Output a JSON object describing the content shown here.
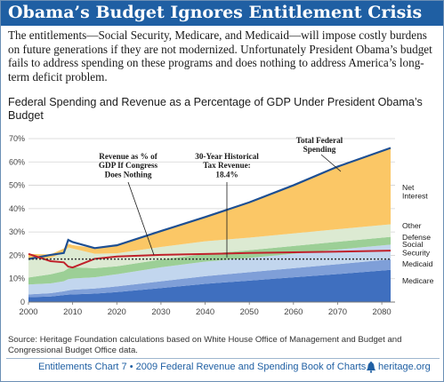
{
  "header": {
    "title": "Obama’s Budget Ignores Entitlement Crisis",
    "intro": "The entitlements—Social Security, Medicare, and Medicaid—will impose costly burdens on future generations if they are not modernized. Unfortunately President Obama’s budget fails to address spending on these programs and does nothing to address America’s long-term deficit problem."
  },
  "chart_data": {
    "type": "area",
    "title": "Federal Spending and Revenue as a Percentage of GDP Under President Obama’s Budget",
    "xlabel": "",
    "ylabel": "",
    "xlim": [
      2000,
      2083
    ],
    "ylim": [
      0,
      70
    ],
    "x_ticks": [
      "2000",
      "2010",
      "2020",
      "2030",
      "2040",
      "2050",
      "2060",
      "2070",
      "2080"
    ],
    "y_ticks": [
      "0",
      "10%",
      "20%",
      "30%",
      "40%",
      "50%",
      "60%",
      "70%"
    ],
    "grid": true,
    "x": [
      2000,
      2005,
      2008,
      2009,
      2010,
      2015,
      2020,
      2030,
      2040,
      2050,
      2060,
      2070,
      2082
    ],
    "series": [
      {
        "name": "Medicare",
        "color": "#3f6fbf",
        "values": [
          2.1,
          2.4,
          3.0,
          3.2,
          3.3,
          3.6,
          4.3,
          6.0,
          7.8,
          9.2,
          10.6,
          12.0,
          13.8
        ]
      },
      {
        "name": "Medicaid",
        "color": "#7f9fd8",
        "values": [
          1.2,
          1.4,
          1.6,
          1.8,
          2.0,
          2.2,
          2.4,
          2.9,
          3.3,
          3.6,
          3.9,
          4.2,
          4.5
        ]
      },
      {
        "name": "Social Security",
        "color": "#c2d6ee",
        "values": [
          4.2,
          4.2,
          4.3,
          4.8,
          4.8,
          4.8,
          5.2,
          6.0,
          6.2,
          6.1,
          6.2,
          6.3,
          6.3
        ]
      },
      {
        "name": "Defense",
        "color": "#9ccf96",
        "values": [
          3.0,
          3.9,
          4.3,
          4.6,
          4.8,
          3.9,
          3.4,
          3.3,
          3.3,
          3.3,
          3.3,
          3.3,
          3.3
        ]
      },
      {
        "name": "Other",
        "color": "#dcead2",
        "values": [
          7.8,
          7.0,
          8.0,
          9.0,
          8.0,
          6.2,
          5.6,
          5.4,
          5.4,
          5.4,
          5.4,
          5.4,
          5.4
        ]
      },
      {
        "name": "Net Interest",
        "color": "#fbc766",
        "values": [
          2.3,
          1.5,
          1.7,
          1.5,
          1.5,
          2.4,
          3.8,
          6.8,
          10.4,
          15.1,
          20.6,
          26.8,
          32.7
        ]
      }
    ],
    "lines": [
      {
        "name": "Total Federal Spending",
        "color": "#1d4f93",
        "values": [
          18.4,
          20.2,
          21.0,
          26.6,
          25.7,
          23.1,
          24.3,
          30.4,
          36.4,
          42.7,
          50.0,
          58.0,
          66.0
        ]
      },
      {
        "name": "Revenue as % of GDP If Congress Does Nothing",
        "color": "#c0202a",
        "values": [
          20.6,
          17.5,
          17.0,
          15.2,
          14.8,
          18.5,
          19.5,
          20.2,
          20.6,
          21.0,
          21.3,
          21.6,
          22.0
        ]
      },
      {
        "name": "30-Year Historical Tax Revenue: 18.4%",
        "color": "#333333",
        "values": [
          18.4,
          18.4,
          18.4,
          18.4,
          18.4,
          18.4,
          18.4,
          18.4,
          18.4,
          18.4,
          18.4,
          18.4,
          18.4
        ]
      }
    ],
    "annotations": {
      "revenue": [
        "Revenue as % of",
        "GDP If Congress",
        "Does Nothing"
      ],
      "historical": [
        "30-Year Historical",
        "Tax Revenue:",
        "18.4%"
      ],
      "total": [
        "Total Federal",
        "Spending"
      ],
      "net_interest": [
        "Net",
        "Interest"
      ]
    },
    "legend": "right",
    "colors": {
      "accent": "#1f5fa3",
      "grid": "#d3d3d3"
    }
  },
  "source": "Source: Heritage Foundation calculations based on White House Office of Management and Budget and Congressional Budget Office data.",
  "footer": {
    "text": "Entitlements Chart 7 • 2009 Federal Revenue and Spending Book of Charts",
    "site": "heritage.org",
    "icon": "liberty-bell-icon"
  }
}
